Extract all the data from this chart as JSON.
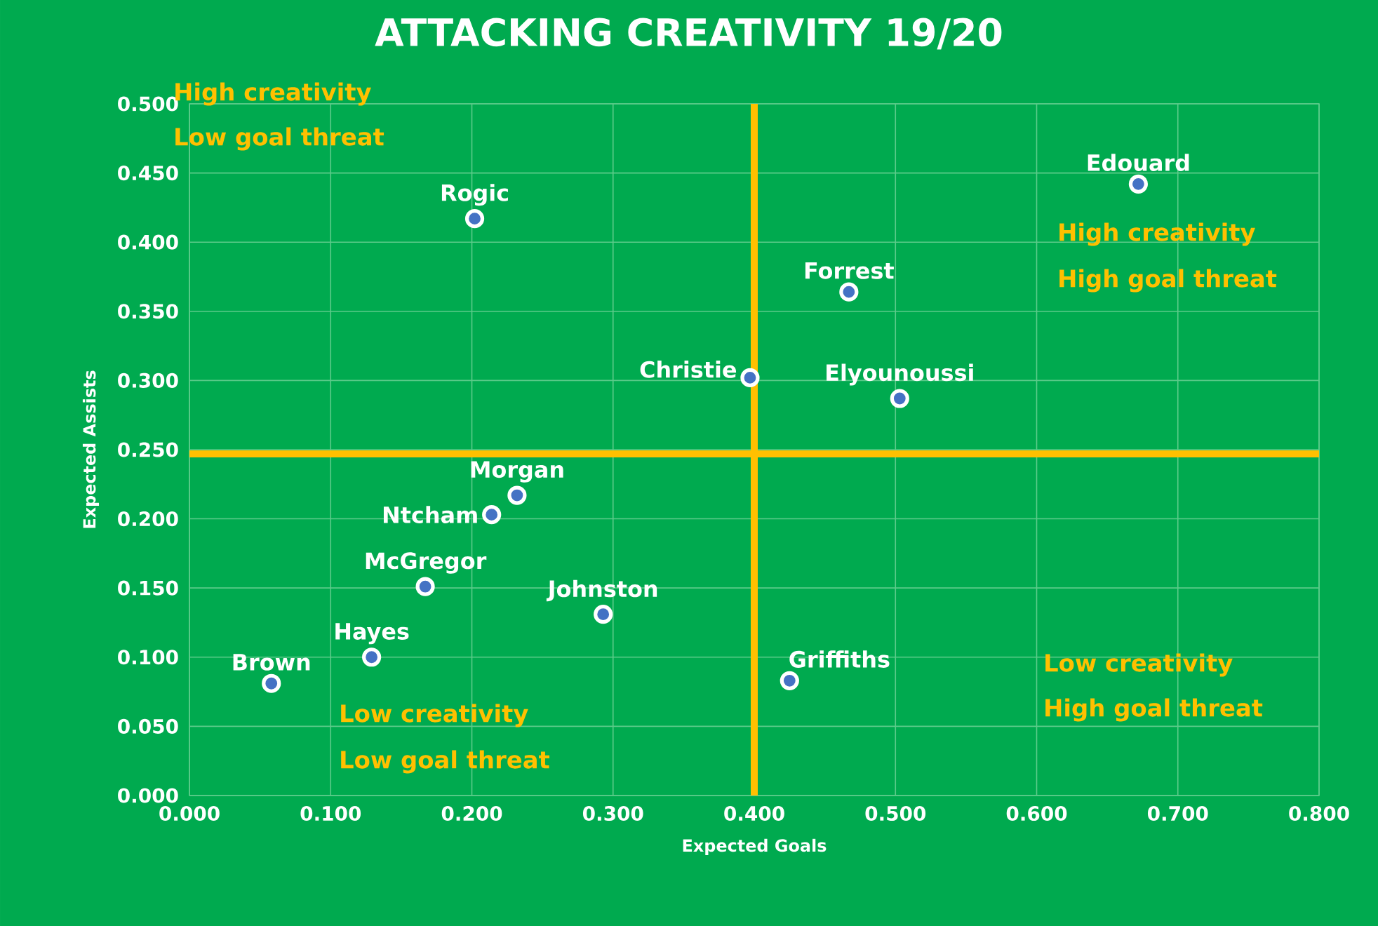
{
  "chart_data": {
    "type": "scatter",
    "title": "ATTACKING CREATIVITY 19/20",
    "xlabel": "Expected Goals",
    "ylabel": "Expected Assists",
    "xlim": [
      0,
      0.8
    ],
    "ylim": [
      0,
      0.5
    ],
    "xticks": [
      {
        "value": 0,
        "label": "0.000"
      },
      {
        "value": 0.1,
        "label": "0.100"
      },
      {
        "value": 0.2,
        "label": "0.200"
      },
      {
        "value": 0.3,
        "label": "0.300"
      },
      {
        "value": 0.4,
        "label": "0.400"
      },
      {
        "value": 0.5,
        "label": "0.500"
      },
      {
        "value": 0.6,
        "label": "0.600"
      },
      {
        "value": 0.7,
        "label": "0.700"
      },
      {
        "value": 0.8,
        "label": "0.800"
      }
    ],
    "yticks": [
      {
        "value": 0,
        "label": "0.000"
      },
      {
        "value": 0.05,
        "label": "0.050"
      },
      {
        "value": 0.1,
        "label": "0.100"
      },
      {
        "value": 0.15,
        "label": "0.150"
      },
      {
        "value": 0.2,
        "label": "0.200"
      },
      {
        "value": 0.25,
        "label": "0.250"
      },
      {
        "value": 0.3,
        "label": "0.300"
      },
      {
        "value": 0.35,
        "label": "0.350"
      },
      {
        "value": 0.4,
        "label": "0.400"
      },
      {
        "value": 0.45,
        "label": "0.450"
      },
      {
        "value": 0.5,
        "label": "0.500"
      }
    ],
    "grid": true,
    "marker": "circle",
    "series": [
      {
        "name": "Edouard",
        "color": "#4472c4",
        "x": [
          0.672
        ],
        "values": [
          0.442
        ]
      },
      {
        "name": "Rogic",
        "color": "#4472c4",
        "x": [
          0.202
        ],
        "values": [
          0.417
        ]
      },
      {
        "name": "Forrest",
        "color": "#4472c4",
        "x": [
          0.467
        ],
        "values": [
          0.364
        ]
      },
      {
        "name": "Christie",
        "color": "#4472c4",
        "x": [
          0.397
        ],
        "values": [
          0.302
        ]
      },
      {
        "name": "Elyounoussi",
        "color": "#4472c4",
        "x": [
          0.503
        ],
        "values": [
          0.287
        ]
      },
      {
        "name": "Morgan",
        "color": "#4472c4",
        "x": [
          0.232
        ],
        "values": [
          0.217
        ]
      },
      {
        "name": "Ntcham",
        "color": "#4472c4",
        "x": [
          0.214
        ],
        "values": [
          0.203
        ]
      },
      {
        "name": "McGregor",
        "color": "#4472c4",
        "x": [
          0.167
        ],
        "values": [
          0.151
        ]
      },
      {
        "name": "Johnston",
        "color": "#4472c4",
        "x": [
          0.293
        ],
        "values": [
          0.131
        ]
      },
      {
        "name": "Hayes",
        "color": "#4472c4",
        "x": [
          0.129
        ],
        "values": [
          0.1
        ]
      },
      {
        "name": "Brown",
        "color": "#4472c4",
        "x": [
          0.058
        ],
        "values": [
          0.081
        ]
      },
      {
        "name": "Griffiths",
        "color": "#4472c4",
        "x": [
          0.425
        ],
        "values": [
          0.083
        ]
      }
    ],
    "ref_lines": [
      {
        "axis": "x",
        "value": 0.4,
        "color": "#ffc000"
      },
      {
        "axis": "y",
        "value": 0.247,
        "color": "#ffc000"
      }
    ],
    "annotations": [
      "High creativity",
      "Low goal threat",
      "High creativity",
      "High goal threat",
      "Low creativity",
      "High goal threat",
      "Low creativity",
      "Low goal threat"
    ]
  }
}
